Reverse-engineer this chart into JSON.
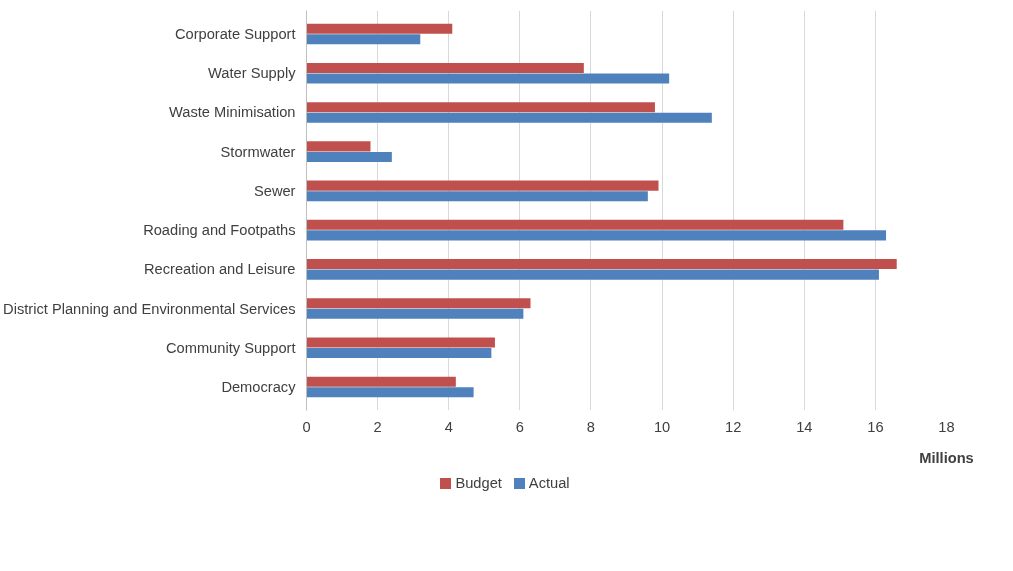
{
  "chart_data": {
    "type": "bar",
    "orientation": "horizontal",
    "xlabel": "Millions",
    "categories": [
      "Corporate Support",
      "Water Supply",
      "Waste Minimisation",
      "Stormwater",
      "Sewer",
      "Roading and Footpaths",
      "Recreation and Leisure",
      "District Planning and Environmental Services",
      "Community Support",
      "Democracy"
    ],
    "series": [
      {
        "name": "Budget",
        "color": "#c0504d",
        "values": [
          4.1,
          7.8,
          9.8,
          1.8,
          9.9,
          15.1,
          16.6,
          6.3,
          5.3,
          4.2
        ]
      },
      {
        "name": "Actual",
        "color": "#4f81bd",
        "values": [
          3.2,
          10.2,
          11.4,
          2.4,
          9.6,
          16.3,
          16.1,
          6.1,
          5.2,
          4.7
        ]
      }
    ],
    "xlim": [
      0,
      18
    ],
    "xticks": [
      0,
      2,
      4,
      6,
      8,
      10,
      12,
      14,
      16,
      18
    ],
    "grid": "x",
    "legend": "bottom"
  }
}
